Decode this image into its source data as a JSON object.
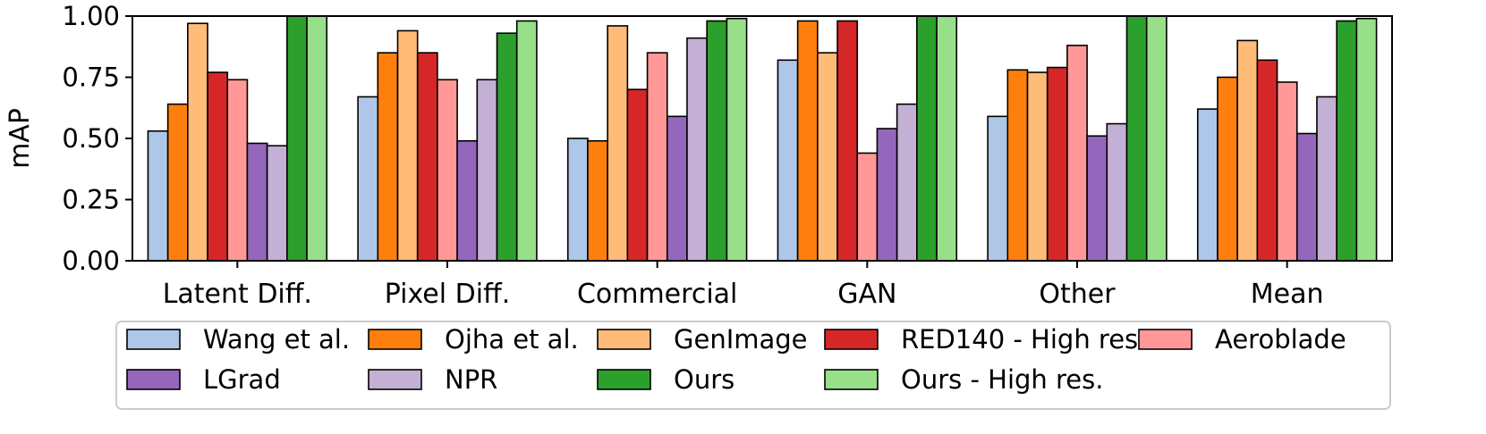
{
  "chart_data": {
    "type": "bar",
    "title": "",
    "xlabel": "",
    "ylabel": "mAP",
    "ylim": [
      0,
      1
    ],
    "yticks": [
      0.0,
      0.25,
      0.5,
      0.75,
      1.0
    ],
    "ytick_labels": [
      "0.00",
      "0.25",
      "0.50",
      "0.75",
      "1.00"
    ],
    "grid": false,
    "legend_position": "bottom",
    "categories": [
      "Latent Diff.",
      "Pixel Diff.",
      "Commercial",
      "GAN",
      "Other",
      "Mean"
    ],
    "series": [
      {
        "name": "Wang et al.",
        "color": "#aec7e8",
        "values": [
          0.53,
          0.67,
          0.5,
          0.82,
          0.59,
          0.62
        ]
      },
      {
        "name": "Ojha et al.",
        "color": "#ff7f0e",
        "values": [
          0.64,
          0.85,
          0.49,
          0.98,
          0.78,
          0.75
        ]
      },
      {
        "name": "GenImage",
        "color": "#ffbb78",
        "values": [
          0.97,
          0.94,
          0.96,
          0.85,
          0.77,
          0.9
        ]
      },
      {
        "name": "RED140 - High res.",
        "color": "#d62728",
        "values": [
          0.77,
          0.85,
          0.7,
          0.98,
          0.79,
          0.82
        ]
      },
      {
        "name": "Aeroblade",
        "color": "#ff9896",
        "values": [
          0.74,
          0.74,
          0.85,
          0.44,
          0.88,
          0.73
        ]
      },
      {
        "name": "LGrad",
        "color": "#9467bd",
        "values": [
          0.48,
          0.49,
          0.59,
          0.54,
          0.51,
          0.52
        ]
      },
      {
        "name": "NPR",
        "color": "#c5b0d5",
        "values": [
          0.47,
          0.74,
          0.91,
          0.64,
          0.56,
          0.67
        ]
      },
      {
        "name": "Ours",
        "color": "#2ca02c",
        "values": [
          1.0,
          0.93,
          0.98,
          1.0,
          1.0,
          0.98
        ]
      },
      {
        "name": "Ours - High res.",
        "color": "#98df8a",
        "values": [
          1.0,
          0.98,
          0.99,
          1.0,
          1.0,
          0.99
        ]
      }
    ]
  }
}
